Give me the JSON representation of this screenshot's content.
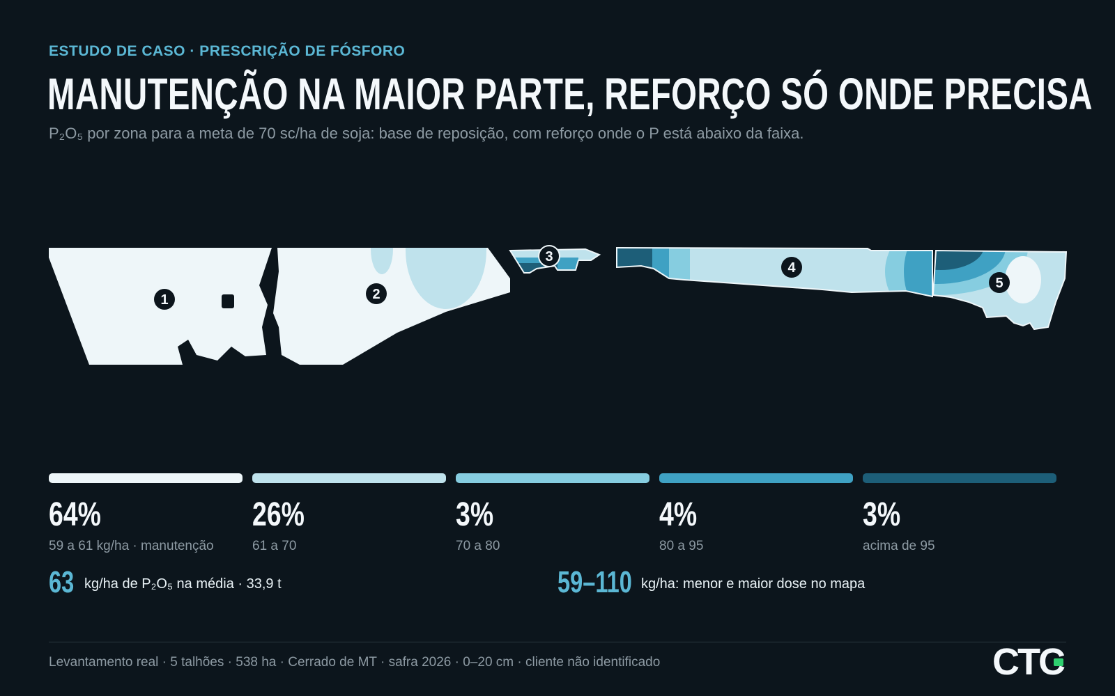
{
  "header": {
    "kicker": "ESTUDO DE CASO · PRESCRIÇÃO DE FÓSFORO",
    "title": "MANUTENÇÃO NA MAIOR PARTE, REFORÇO SÓ ONDE PRECISA",
    "subtitle": "P₂O₅ por zona para a meta de 70 sc/ha de soja: base de reposição, com reforço onde o P está abaixo da faixa."
  },
  "map": {
    "fields": [
      {
        "label": "1"
      },
      {
        "label": "2"
      },
      {
        "label": "3"
      },
      {
        "label": "4"
      },
      {
        "label": "5"
      }
    ]
  },
  "legend": {
    "classes": [
      {
        "pct": "64%",
        "range": "59 a 61 kg/ha · manutenção",
        "color": "#eef6f9",
        "share": 0.64
      },
      {
        "pct": "26%",
        "range": "61 a 70",
        "color": "#bfe2ec",
        "share": 0.26
      },
      {
        "pct": "3%",
        "range": "70 a 80",
        "color": "#86cde0",
        "share": 0.03
      },
      {
        "pct": "4%",
        "range": "80 a 95",
        "color": "#3fa1c3",
        "share": 0.04
      },
      {
        "pct": "3%",
        "range": "acima de 95",
        "color": "#1d5e78",
        "share": 0.03
      }
    ]
  },
  "stats": {
    "average_value": "63",
    "average_text": "kg/ha de P₂O₅ na média · 33,9 t",
    "range_value": "59–110",
    "range_text": "kg/ha: menor e maior dose no mapa"
  },
  "footer": {
    "text": "Levantamento real · 5 talhões · 538 ha · Cerrado de MT · safra 2026 · 0–20 cm · cliente não identificado"
  },
  "brand": {
    "name": "CTC",
    "accent": "#2fcf6f"
  }
}
